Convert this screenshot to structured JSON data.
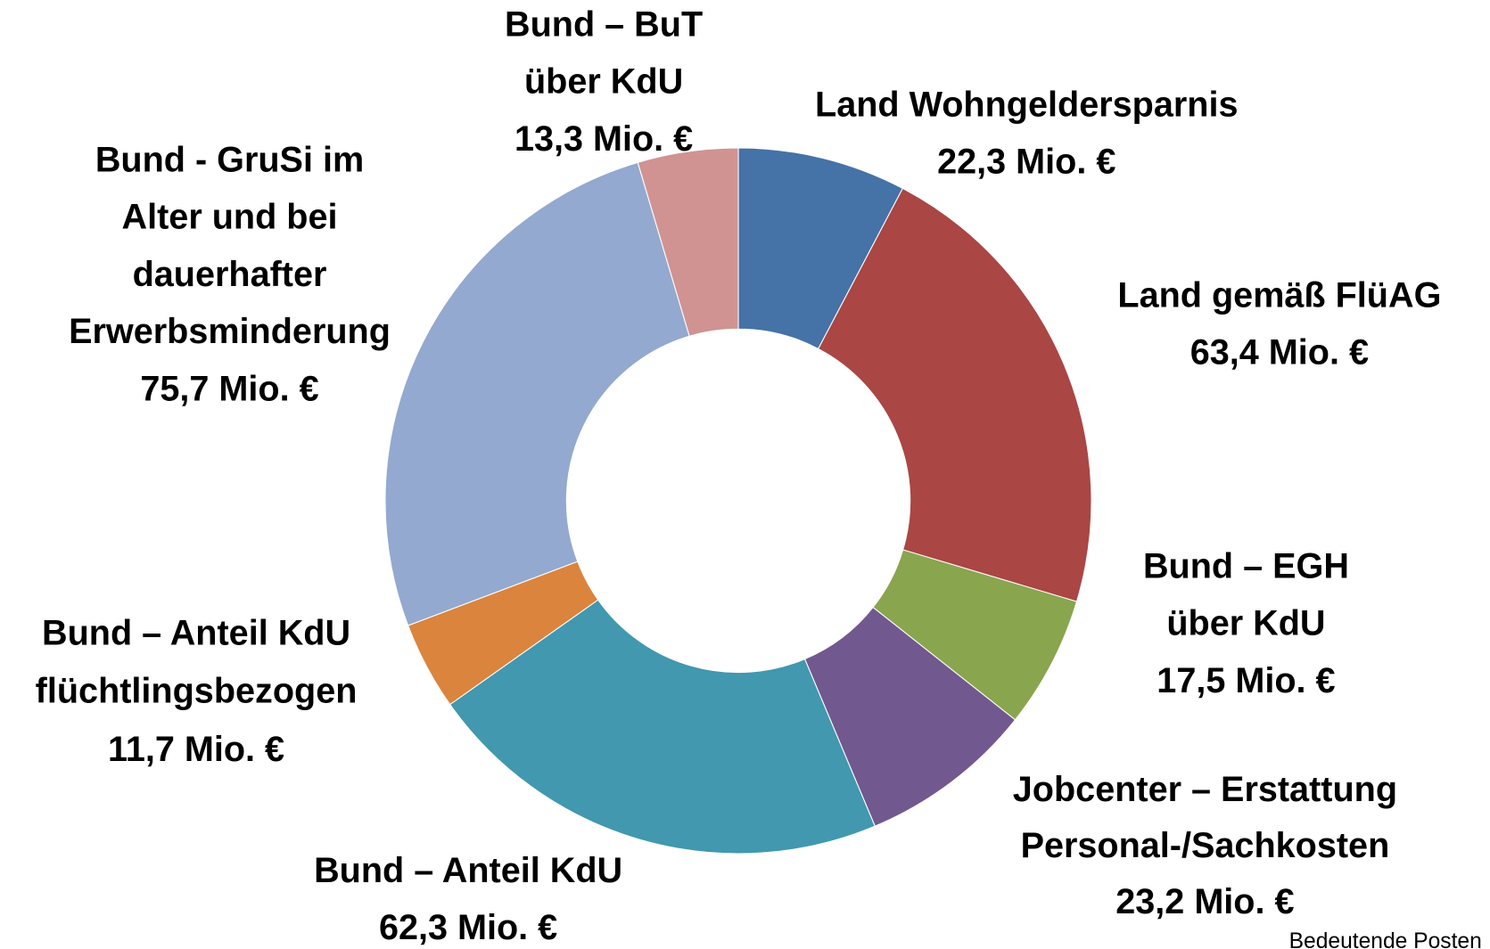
{
  "chart_data": {
    "type": "donut",
    "categories": [
      [
        "Land Wohngeldersparnis"
      ],
      [
        "Land gemäß FlüAG"
      ],
      [
        "Bund – EGH",
        "über KdU"
      ],
      [
        "Jobcenter – Erstattung",
        "Personal-/Sachkosten"
      ],
      [
        "Bund – Anteil KdU"
      ],
      [
        "Bund – Anteil KdU",
        "flüchtlingsbezogen"
      ],
      [
        "Bund - GruSi im",
        "Alter und bei",
        "dauerhafter",
        "Erwerbsminderung"
      ],
      [
        "Bund – BuT",
        "über KdU"
      ]
    ],
    "values": [
      22.3,
      63.4,
      17.5,
      23.2,
      62.3,
      11.7,
      75.7,
      13.3
    ],
    "value_labels": [
      "22,3 Mio. €",
      "63,4 Mio. €",
      "17,5 Mio. €",
      "23,2 Mio. €",
      "62,3 Mio. €",
      "11,7 Mio. €",
      "75,7 Mio. €",
      "13,3 Mio. €"
    ],
    "colors": [
      "#4572a7",
      "#aa4643",
      "#89a54e",
      "#71588f",
      "#4198af",
      "#db843d",
      "#93a9cf",
      "#d09392"
    ],
    "note": "Bedeutende Posten"
  }
}
